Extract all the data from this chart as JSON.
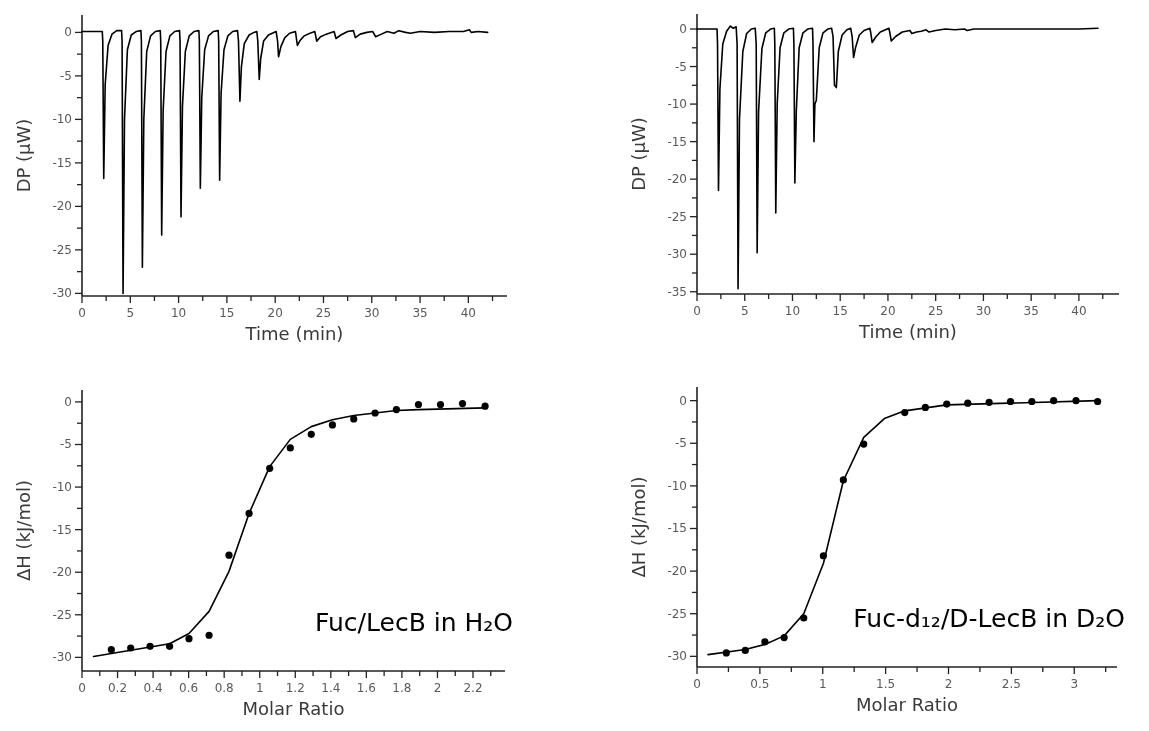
{
  "chart_data": [
    {
      "type": "line",
      "xlabel": "Time (min)",
      "ylabel": "DP (μW)",
      "xlim": [
        0,
        44
      ],
      "ylim": [
        -30.3,
        2
      ],
      "xticks": [
        0,
        {
          "value": 2.5,
          "label": null
        },
        5,
        {
          "value": 7.5,
          "label": null
        },
        10,
        {
          "value": 12.5,
          "label": null
        },
        15,
        {
          "value": 17.5,
          "label": null
        },
        20,
        {
          "value": 22.5,
          "label": null
        },
        25,
        {
          "value": 27.5,
          "label": null
        },
        30,
        {
          "value": 32.5,
          "label": null
        },
        35,
        {
          "value": 37.5,
          "label": null
        },
        40,
        {
          "value": 42.5,
          "label": null
        }
      ],
      "yticks": [
        0,
        {
          "value": -2.5,
          "label": null
        },
        -5,
        {
          "value": -7.5,
          "label": null
        },
        -10,
        {
          "value": -12.5,
          "label": null
        },
        -15,
        {
          "value": -17.5,
          "label": null
        },
        -20,
        {
          "value": -22.5,
          "label": null
        },
        -25,
        {
          "value": -27.5,
          "label": null
        },
        -30
      ],
      "series": [
        {
          "color": "#000000",
          "x": [
            0,
            2.1,
            2.15,
            2.25,
            2.4,
            2.7,
            3.1,
            3.6,
            4.1,
            4.15,
            4.25,
            4.4,
            4.7,
            5.1,
            5.6,
            6.1,
            6.15,
            6.25,
            6.4,
            6.7,
            7.1,
            7.6,
            8.1,
            8.15,
            8.25,
            8.4,
            8.7,
            9.1,
            9.6,
            10.1,
            10.15,
            10.25,
            10.4,
            10.7,
            11.1,
            11.6,
            12.1,
            12.15,
            12.25,
            12.4,
            12.7,
            13.1,
            13.6,
            14.1,
            14.15,
            14.25,
            14.4,
            14.7,
            15.1,
            15.6,
            16.1,
            16.2,
            16.35,
            16.5,
            16.8,
            17.3,
            17.8,
            18.1,
            18.2,
            18.35,
            18.5,
            18.8,
            19.3,
            20.1,
            20.25,
            20.35,
            20.6,
            21,
            21.5,
            22.1,
            22.3,
            22.6,
            23,
            23.6,
            24.1,
            24.3,
            24.7,
            25.3,
            26.1,
            26.3,
            26.8,
            27.5,
            28.1,
            28.3,
            28.8,
            29.5,
            30.1,
            30.4,
            31,
            31.6,
            32.3,
            32.8,
            33.5,
            34,
            35,
            36.5,
            38,
            39.5,
            40.1,
            40.3,
            41,
            42
          ],
          "values": [
            0.1,
            0.1,
            -1,
            -16.8,
            -6,
            -1.5,
            -0.2,
            0.2,
            0.2,
            -1,
            -30,
            -10,
            -2,
            -0.3,
            0.1,
            0.2,
            -1,
            -27,
            -10,
            -2.2,
            -0.4,
            0.1,
            0.2,
            -1,
            -23.3,
            -9,
            -2.2,
            -0.4,
            0.1,
            0.2,
            -1,
            -21.2,
            -8.5,
            -2.2,
            -0.4,
            0.1,
            0.2,
            -1,
            -17.9,
            -7.5,
            -2,
            -0.4,
            0.1,
            0.2,
            -1,
            -17,
            -7,
            -2,
            -0.4,
            0.1,
            0.2,
            -1,
            -7.9,
            -4,
            -1.3,
            -0.3,
            0,
            0.1,
            -1,
            -5.4,
            -3,
            -1,
            -0.3,
            0.1,
            -1,
            -2.8,
            -1.6,
            -0.6,
            -0.1,
            0.1,
            -1.5,
            -0.9,
            -0.4,
            -0.1,
            0.1,
            -1,
            -0.5,
            -0.2,
            0.1,
            -0.7,
            -0.3,
            0.1,
            0.2,
            -0.6,
            -0.2,
            0,
            0.1,
            -0.5,
            -0.2,
            0.1,
            -0.1,
            0.2,
            0,
            -0.1,
            0.1,
            0,
            0.1,
            0.1,
            0.3,
            0,
            0.1,
            0
          ]
        }
      ]
    },
    {
      "type": "line",
      "xlabel": "Time (min)",
      "ylabel": "DP (μW)",
      "xlim": [
        0,
        44.2
      ],
      "ylim": [
        -35.3,
        2
      ],
      "xticks": [
        0,
        {
          "value": 2.5,
          "label": null
        },
        5,
        {
          "value": 7.5,
          "label": null
        },
        10,
        {
          "value": 12.5,
          "label": null
        },
        15,
        {
          "value": 17.5,
          "label": null
        },
        20,
        {
          "value": 22.5,
          "label": null
        },
        25,
        {
          "value": 27.5,
          "label": null
        },
        30,
        {
          "value": 32.5,
          "label": null
        },
        35,
        {
          "value": 37.5,
          "label": null
        },
        40,
        {
          "value": 42.5,
          "label": null
        }
      ],
      "yticks": [
        0,
        {
          "value": -2.5,
          "label": null
        },
        -5,
        {
          "value": -7.5,
          "label": null
        },
        -10,
        {
          "value": -12.5,
          "label": null
        },
        -15,
        {
          "value": -17.5,
          "label": null
        },
        -20,
        {
          "value": -22.5,
          "label": null
        },
        -25,
        {
          "value": -27.5,
          "label": null
        },
        -30,
        {
          "value": -32.5,
          "label": null
        },
        -35
      ],
      "series": [
        {
          "color": "#000000",
          "x": [
            0,
            2.1,
            2.15,
            2.25,
            2.4,
            2.7,
            3.1,
            3.5,
            3.8,
            4.1,
            4.2,
            4.3,
            4.45,
            4.8,
            5.2,
            5.7,
            6.1,
            6.2,
            6.3,
            6.45,
            6.8,
            7.2,
            7.7,
            8.1,
            8.15,
            8.25,
            8.4,
            8.7,
            9.1,
            9.6,
            10.1,
            10.15,
            10.25,
            10.4,
            10.7,
            11.1,
            11.6,
            12.1,
            12.15,
            12.25,
            12.35,
            12.5,
            12.8,
            13.2,
            13.7,
            14.1,
            14.25,
            14.4,
            14.6,
            14.8,
            15.2,
            15.7,
            16.1,
            16.25,
            16.4,
            16.6,
            17,
            17.5,
            18.1,
            18.2,
            18.35,
            18.7,
            19.2,
            20.1,
            20.2,
            20.35,
            20.8,
            21.5,
            22.3,
            22.5,
            23,
            23.5,
            24,
            24.3,
            25,
            26,
            27,
            28,
            28.3,
            29,
            31,
            34,
            37,
            40,
            42
          ],
          "values": [
            0,
            0,
            -2,
            -21.5,
            -8,
            -2,
            -0.3,
            0.4,
            0.1,
            0.3,
            -2,
            -34.6,
            -12,
            -3,
            -0.6,
            0,
            0.1,
            -2,
            -29.8,
            -11,
            -2.6,
            -0.5,
            0,
            0.1,
            -2,
            -24.5,
            -10,
            -2.5,
            -0.5,
            0,
            0.1,
            -2,
            -20.5,
            -11,
            -2.5,
            -0.5,
            0,
            0.1,
            -2,
            -15,
            -10,
            -9.5,
            -2.5,
            -0.5,
            0,
            0.1,
            -1,
            -7.5,
            -7.8,
            -3,
            -0.8,
            -0.1,
            0.1,
            -1,
            -3.8,
            -2.5,
            -0.8,
            -0.2,
            0.1,
            -0.5,
            -1.8,
            -1.1,
            -0.4,
            0.1,
            -0.5,
            -1.6,
            -1,
            -0.4,
            -0.2,
            -0.6,
            -0.4,
            -0.3,
            -0.1,
            -0.4,
            -0.2,
            0,
            -0.1,
            0,
            -0.2,
            0,
            0,
            0,
            0,
            0,
            0.1
          ]
        }
      ]
    },
    {
      "type": "scatter",
      "xlabel": "Molar Ratio",
      "ylabel": "ΔH (kJ/mol)",
      "xlim": [
        0,
        2.38
      ],
      "ylim": [
        -31.6,
        1.4
      ],
      "xticks": [
        0,
        {
          "value": 0.1,
          "label": null
        },
        0.2,
        {
          "value": 0.3,
          "label": null
        },
        0.4,
        {
          "value": 0.5,
          "label": null
        },
        0.6,
        {
          "value": 0.7,
          "label": null
        },
        0.8,
        {
          "value": 0.9,
          "label": null
        },
        1,
        {
          "value": 1.1,
          "label": null
        },
        1.2,
        {
          "value": 1.3,
          "label": null
        },
        1.4,
        {
          "value": 1.5,
          "label": null
        },
        1.6,
        {
          "value": 1.7,
          "label": null
        },
        1.8,
        {
          "value": 1.9,
          "label": null
        },
        2,
        {
          "value": 2.1,
          "label": null
        },
        2.2,
        {
          "value": 2.3,
          "label": null
        }
      ],
      "yticks": [
        0,
        {
          "value": -2.5,
          "label": null
        },
        -5,
        {
          "value": -7.5,
          "label": null
        },
        -10,
        {
          "value": -12.5,
          "label": null
        },
        -15,
        {
          "value": -17.5,
          "label": null
        },
        -20,
        {
          "value": -22.5,
          "label": null
        },
        -25,
        {
          "value": -27.5,
          "label": null
        },
        -30
      ],
      "annotations": [
        "Fuc/LecB in H₂O"
      ],
      "series": [
        {
          "type": "line",
          "color": "#000000",
          "x": [
            0.065,
            0.493,
            0.602,
            0.715,
            0.827,
            0.94,
            1.056,
            1.172,
            1.29,
            1.409,
            1.529,
            1.649,
            1.769,
            1.893,
            2.268
          ],
          "values": [
            -29.9,
            -28.4,
            -27.2,
            -24.6,
            -19.9,
            -13.1,
            -7.6,
            -4.4,
            -2.9,
            -2.1,
            -1.6,
            -1.3,
            -1,
            -0.9,
            -0.7
          ]
        },
        {
          "marker": "circle",
          "color": "#000000",
          "x": [
            0.165,
            0.274,
            0.383,
            0.493,
            0.602,
            0.715,
            0.827,
            0.94,
            1.056,
            1.172,
            1.29,
            1.409,
            1.529,
            1.649,
            1.769,
            1.893,
            2.017,
            2.141,
            2.268
          ],
          "values": [
            -29.1,
            -28.9,
            -28.7,
            -28.7,
            -27.8,
            -27.4,
            -18,
            -13.1,
            -7.8,
            -5.4,
            -3.8,
            -2.7,
            -2,
            -1.3,
            -0.9,
            -0.3,
            -0.3,
            -0.2,
            -0.5
          ]
        }
      ]
    },
    {
      "type": "scatter",
      "xlabel": "Molar Ratio",
      "ylabel": "ΔH (kJ/mol)",
      "xlim": [
        0,
        3.34
      ],
      "ylim": [
        -31.25,
        1.6
      ],
      "xticks": [
        0,
        {
          "value": 0.25,
          "label": null
        },
        0.5,
        {
          "value": 0.75,
          "label": null
        },
        1,
        {
          "value": 1.25,
          "label": null
        },
        1.5,
        {
          "value": 1.75,
          "label": null
        },
        2,
        {
          "value": 2.25,
          "label": null
        },
        2.5,
        {
          "value": 2.75,
          "label": null
        },
        3,
        {
          "value": 3.25,
          "label": null
        }
      ],
      "yticks": [
        0,
        {
          "value": -2.5,
          "label": null
        },
        -5,
        {
          "value": -7.5,
          "label": null
        },
        -10,
        {
          "value": -12.5,
          "label": null
        },
        -15,
        {
          "value": -17.5,
          "label": null
        },
        -20,
        {
          "value": -22.5,
          "label": null
        },
        -25,
        {
          "value": -27.5,
          "label": null
        },
        -30
      ],
      "annotations": [
        "Fuc-d₁₂/D-LecB in D₂O"
      ],
      "series": [
        {
          "type": "line",
          "color": "#000000",
          "x": [
            0.088,
            0.384,
            0.54,
            0.693,
            0.849,
            1.005,
            1.164,
            1.326,
            1.49,
            1.652,
            1.986,
            3.186
          ],
          "values": [
            -29.8,
            -29.2,
            -28.6,
            -27.6,
            -25,
            -19.1,
            -9.4,
            -4.3,
            -2.1,
            -1.2,
            -0.5,
            0
          ]
        },
        {
          "marker": "circle",
          "color": "#000000",
          "x": [
            0.233,
            0.384,
            0.54,
            0.693,
            0.849,
            1.005,
            1.164,
            1.326,
            1.652,
            1.816,
            1.986,
            2.153,
            2.323,
            2.493,
            2.663,
            2.836,
            3.014,
            3.186
          ],
          "values": [
            -29.6,
            -29.3,
            -28.3,
            -27.8,
            -25.5,
            -18.2,
            -9.3,
            -5.1,
            -1.4,
            -0.8,
            -0.4,
            -0.3,
            -0.2,
            -0.1,
            -0.1,
            0,
            0,
            -0.1
          ]
        }
      ]
    }
  ]
}
